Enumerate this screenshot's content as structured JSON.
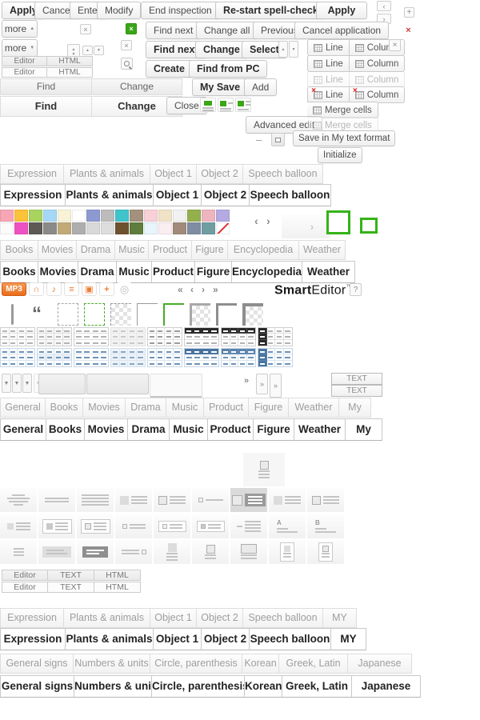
{
  "colors": {
    "accent_green": "#3aa617",
    "accent_orange": "#ee7b2e",
    "status_red": "#cf3a3a",
    "table_blue": "#49739f",
    "table_dark": "#2a2a2a"
  },
  "glyphs": {
    "close": "×",
    "up": "▲",
    "down": "▼",
    "left": "‹",
    "right": "›",
    "left_double": "«",
    "right_double": "»",
    "plus": "+",
    "minus": "–",
    "note": "♪",
    "list": "≡",
    "tv": "▣",
    "headphones": "∩",
    "disc": "◎",
    "quote": "“",
    "help": "?"
  },
  "buttons": {
    "apply": "Apply",
    "cancel": "Cancel",
    "enter": "Enter",
    "modify": "Modify",
    "more": "more",
    "editor": "Editor",
    "html": "HTML",
    "text": "TEXT",
    "find": "Find",
    "change": "Change",
    "end_inspection": "End inspection",
    "restart_spellcheck": "Re-start spell-check",
    "apply2": "Apply",
    "find_next": "Find next",
    "change_all": "Change all",
    "previous": "Previous",
    "cancel_application": "Cancel application",
    "find_next_bold": "Find next",
    "change_bold": "Change",
    "select": "Select",
    "create": "Create",
    "find_from_pc": "Find from PC",
    "my_save": "My Save",
    "add": "Add",
    "close": "Close",
    "advanced_edit": "Advanced edit",
    "line": "Line",
    "column": "Column",
    "merge_cells": "Merge cells",
    "save_my_text": "Save in My text format",
    "initialize": "Initialize",
    "mp3": "MP3"
  },
  "logo": {
    "brand_bold": "Smart",
    "brand_rest": "Editor",
    "tm": "™"
  },
  "tabs": {
    "sticker": [
      "Expression",
      "Plants & animals",
      "Object 1",
      "Object 2",
      "Speech balloon"
    ],
    "media": [
      "Books",
      "Movies",
      "Drama",
      "Music",
      "Product",
      "Figure",
      "Encyclopedia",
      "Weather"
    ],
    "general": [
      "General",
      "Books",
      "Movies",
      "Drama",
      "Music",
      "Product",
      "Figure",
      "Weather",
      "My"
    ],
    "sticker_my": [
      "Expression",
      "Plants & animals",
      "Object 1",
      "Object 2",
      "Speech balloon",
      "MY"
    ],
    "signs": [
      "General signs",
      "Numbers & units",
      "Circle, parenthesis",
      "Korean",
      "Greek, Latin",
      "Japanese"
    ]
  },
  "palette": {
    "row1": [
      "#f7a6b6",
      "#fbc23a",
      "#a9d35f",
      "#a5d8f6",
      "#f8f3d6",
      "#ffffff",
      "#8d99d1",
      "#bcbcbc",
      "#3fc4cb",
      "#a3917e",
      "#f8d0d7",
      "#f0e2c6",
      "#f1f1f1",
      "#93b04d",
      "#eeb5be",
      "#b4aae1"
    ],
    "row2": [
      "#fbfbfb",
      "#ee51c1",
      "#5d5a55",
      "#8a8a88",
      "#c2aa78",
      "#aeaeae",
      "#d9d9d9",
      "#dddddd",
      "#6e5230",
      "#5f7d3c",
      "#e8f5fb",
      "#fbeef0",
      "#a18a7a",
      "#7e8da1",
      "#6f9da2",
      "none"
    ]
  },
  "border_tiles": [
    "dash-gray",
    "dash-green",
    "checker-dash",
    "solid-gray",
    "solid-green",
    "checker-mid",
    "thick-gray",
    "checker-thick"
  ],
  "table_styles": {
    "gray": [
      "grid",
      "grid-alt",
      "hlines",
      "light",
      "grid-strong",
      "bar-dark",
      "cells-dark",
      "col-dark"
    ],
    "blue": [
      "grid",
      "grid-alt",
      "hlines",
      "light",
      "grid-strong",
      "bar-dark",
      "cells-dark",
      "col-dark"
    ]
  },
  "layout_thumbs": {
    "solo": [
      "image-top-solo"
    ],
    "rowA": [
      "text-center",
      "divider",
      "text-block",
      "image-left",
      "image-left-boxed",
      "bullet-line",
      "image-left-selected",
      "image-left",
      "image-left-boxed"
    ],
    "rowB": [
      "image-left-small",
      "image-left-filled-box",
      "image-left-boxed-3",
      "bullet-2lines",
      "bullet-2lines-box",
      "bullet-filled-box",
      "dash-text",
      "heading-a",
      "heading-b"
    ],
    "rowC": [
      "text-short",
      "panel-text",
      "panel-dark",
      "text-bullet-right",
      "image-top",
      "image-top-boxed",
      "image-top-large",
      "card-portrait",
      "card-portrait-2"
    ]
  }
}
